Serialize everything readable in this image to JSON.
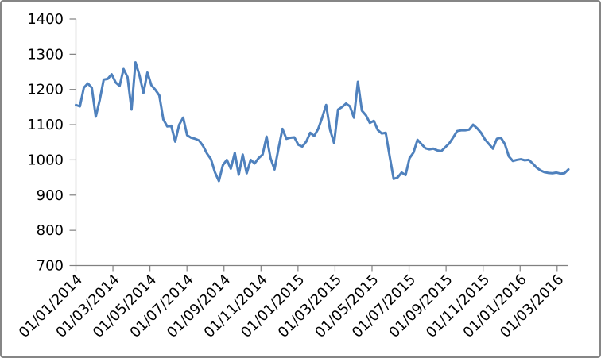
{
  "window": {
    "background": "#FFFFFF",
    "border_color": "#868686"
  },
  "styles": {
    "series_color": "#4F81BD",
    "axis_color": "#808080",
    "tick_label_color": "#000000"
  },
  "chart_data": {
    "type": "line",
    "title": "",
    "xlabel": "",
    "ylabel": "",
    "grid": "off",
    "legend": "none",
    "ylim": [
      700,
      1400
    ],
    "y_ticks": [
      700,
      800,
      900,
      1000,
      1100,
      1200,
      1300,
      1400
    ],
    "x_tick_labels": [
      "01/01/2014",
      "01/03/2014",
      "01/05/2014",
      "01/07/2014",
      "01/09/2014",
      "01/11/2014",
      "01/01/2015",
      "01/03/2015",
      "01/05/2015",
      "01/07/2015",
      "01/09/2015",
      "01/11/2015",
      "01/01/2016",
      "01/03/2016"
    ],
    "x_label_rotation_deg": -45,
    "x_start": "01/01/2014",
    "x_end": "mid 03/2016",
    "x_cadence": "approximately weekly",
    "values": [
      1156,
      1152,
      1205,
      1217,
      1205,
      1123,
      1170,
      1228,
      1230,
      1243,
      1220,
      1210,
      1258,
      1235,
      1143,
      1277,
      1240,
      1190,
      1248,
      1212,
      1199,
      1183,
      1115,
      1095,
      1097,
      1052,
      1100,
      1120,
      1070,
      1063,
      1060,
      1055,
      1040,
      1018,
      1002,
      965,
      940,
      985,
      1000,
      975,
      1020,
      958,
      1015,
      962,
      1000,
      990,
      1005,
      1015,
      1066,
      1005,
      973,
      1032,
      1088,
      1060,
      1063,
      1064,
      1043,
      1038,
      1052,
      1077,
      1068,
      1088,
      1120,
      1156,
      1085,
      1048,
      1143,
      1150,
      1160,
      1152,
      1120,
      1222,
      1140,
      1127,
      1105,
      1111,
      1085,
      1075,
      1077,
      1010,
      946,
      950,
      964,
      957,
      1005,
      1021,
      1057,
      1045,
      1033,
      1030,
      1032,
      1027,
      1025,
      1036,
      1047,
      1064,
      1082,
      1084,
      1084,
      1086,
      1100,
      1090,
      1077,
      1058,
      1045,
      1032,
      1060,
      1063,
      1045,
      1010,
      997,
      1000,
      1002,
      999,
      1000,
      990,
      978,
      970,
      965,
      963,
      962,
      964,
      961,
      962,
      973
    ]
  }
}
